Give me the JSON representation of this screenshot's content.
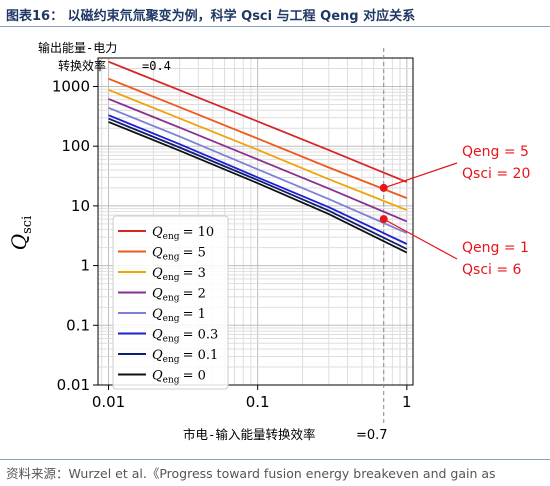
{
  "header": {
    "title": "图表16： 以磁约束氘氚聚变为例，科学 Qsci 与工程 Qeng 对应关系"
  },
  "footer": {
    "source": "资料来源：Wurzel et al.《Progress toward fusion energy breakeven and gain as"
  },
  "chart_data": {
    "type": "line",
    "xscale": "log",
    "yscale": "log",
    "xlim": [
      0.0085,
      1.1
    ],
    "ylim": [
      0.01,
      3000
    ],
    "x_ticks": [
      {
        "value": 0.01,
        "label": "0.01"
      },
      {
        "value": 0.1,
        "label": "0.1"
      },
      {
        "value": 1,
        "label": "1"
      }
    ],
    "y_ticks": [
      {
        "value": 0.01,
        "label": "0.01"
      },
      {
        "value": 0.1,
        "label": "0.1"
      },
      {
        "value": 1,
        "label": "1"
      },
      {
        "value": 10,
        "label": "10"
      },
      {
        "value": 100,
        "label": "100"
      },
      {
        "value": 1000,
        "label": "1000"
      }
    ],
    "grid": true,
    "ylabel": "Qsci",
    "ylabel_main": "Q",
    "ylabel_sub": "sci",
    "xlabel_text": "市电-输入能量转换效率",
    "xlabel_value": "=0.7",
    "top_annotation_line1": "输出能量-电力",
    "top_annotation_line2": "转换效率",
    "top_annotation_value": "=0.4",
    "vline_x": 0.7,
    "legend_placement": "lower-left",
    "legend_symbol_main": "Q",
    "legend_symbol_sub": "eng",
    "series": [
      {
        "q": "10",
        "legend": "= 10",
        "color": "#d62728",
        "x": [
          0.01,
          0.03,
          0.1,
          0.3,
          1
        ],
        "y": [
          2600,
          867,
          260,
          86,
          25
        ]
      },
      {
        "q": "5",
        "legend": "= 5",
        "color": "#ee5a1c",
        "x": [
          0.01,
          0.03,
          0.1,
          0.3,
          1
        ],
        "y": [
          1350,
          450,
          134,
          44,
          13.5
        ]
      },
      {
        "q": "3",
        "legend": "= 3",
        "color": "#f0a30a",
        "x": [
          0.01,
          0.03,
          0.1,
          0.3,
          1
        ],
        "y": [
          880,
          292,
          87,
          28,
          8.5
        ]
      },
      {
        "q": "2",
        "legend": "= 2",
        "color": "#8b2f8f",
        "x": [
          0.01,
          0.03,
          0.1,
          0.3,
          1
        ],
        "y": [
          620,
          205,
          60,
          19.5,
          5.5
        ]
      },
      {
        "q": "1",
        "legend": "= 1",
        "color": "#7d7fd8",
        "x": [
          0.01,
          0.03,
          0.1,
          0.3,
          1
        ],
        "y": [
          440,
          145,
          41,
          13,
          3.5
        ]
      },
      {
        "q": "0.3",
        "legend": "= 0.3",
        "color": "#1f1fd6",
        "x": [
          0.01,
          0.03,
          0.1,
          0.3,
          1
        ],
        "y": [
          330,
          108,
          30,
          9.5,
          2.3
        ]
      },
      {
        "q": "0.1",
        "legend": "= 0.1",
        "color": "#0f1e6e",
        "x": [
          0.01,
          0.03,
          0.1,
          0.3,
          1
        ],
        "y": [
          290,
          95,
          27,
          8.3,
          1.9
        ]
      },
      {
        "q": "0",
        "legend": "= 0",
        "color": "#111111",
        "x": [
          0.01,
          0.03,
          0.1,
          0.3,
          1
        ],
        "y": [
          255,
          84,
          24,
          7.3,
          1.65
        ]
      }
    ],
    "annotations": [
      {
        "x": 0.7,
        "y": 20,
        "label_q_eng": "Qeng = 5",
        "label_q_sci": "Qsci = 20",
        "color": "#e8141b"
      },
      {
        "x": 0.7,
        "y": 6,
        "label_q_eng": "Qeng = 1",
        "label_q_sci": "Qsci = 6",
        "color": "#e8141b"
      }
    ]
  }
}
